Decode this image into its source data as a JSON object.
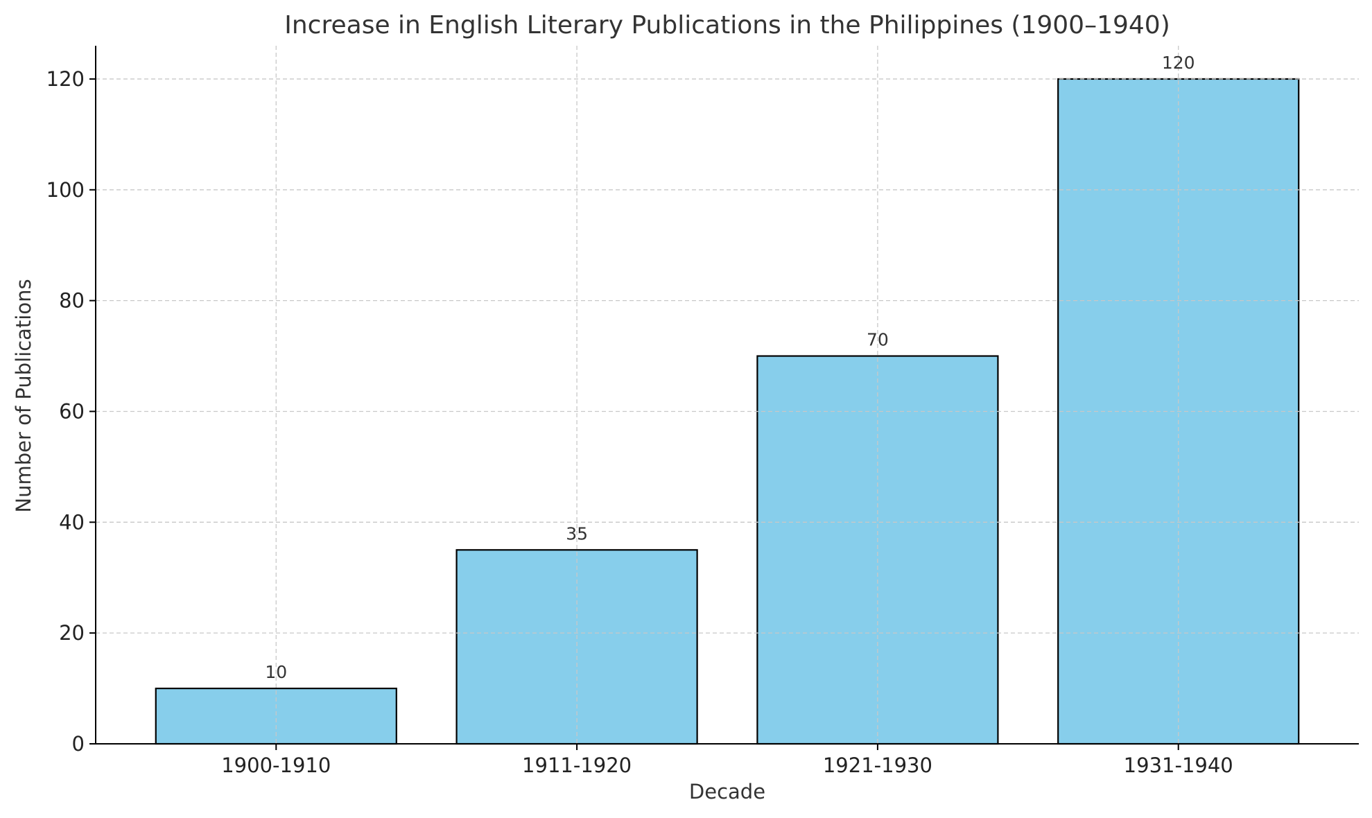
{
  "chart_data": {
    "type": "bar",
    "title": "Increase in English Literary Publications in the Philippines (1900–1940)",
    "xlabel": "Decade",
    "ylabel": "Number of Publications",
    "categories": [
      "1900-1910",
      "1911-1920",
      "1921-1930",
      "1931-1940"
    ],
    "values": [
      10,
      35,
      70,
      120
    ],
    "data_labels": [
      "10",
      "35",
      "70",
      "120"
    ],
    "ylim": [
      0,
      126
    ],
    "yticks": [
      0,
      20,
      40,
      60,
      80,
      100,
      120
    ],
    "ytick_labels": [
      "0",
      "20",
      "40",
      "60",
      "80",
      "100",
      "120"
    ],
    "grid": true,
    "legend": "none",
    "colors": {
      "bar_fill": "#87CEEB",
      "bar_edge": "#000000",
      "grid": "#c8c8c8",
      "text": "#333333"
    }
  }
}
